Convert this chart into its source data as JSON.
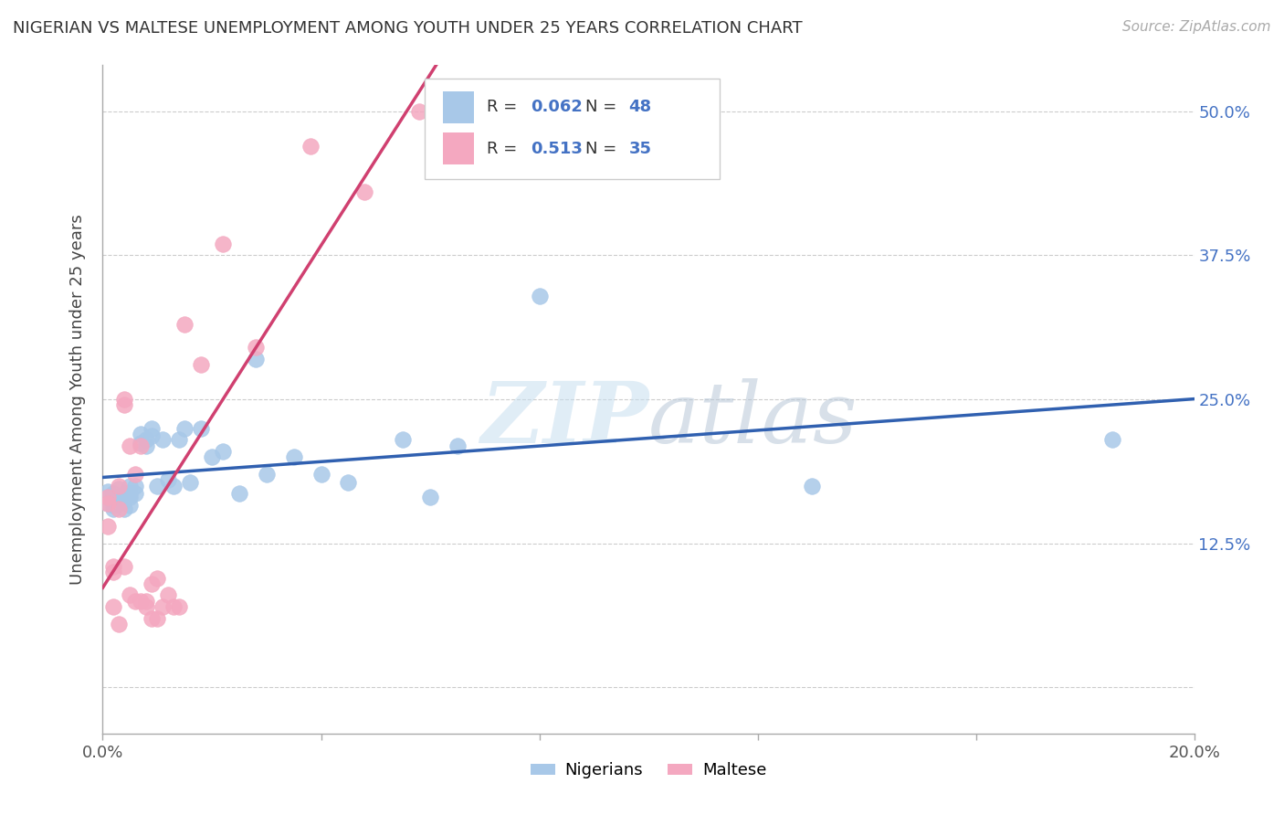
{
  "title": "NIGERIAN VS MALTESE UNEMPLOYMENT AMONG YOUTH UNDER 25 YEARS CORRELATION CHART",
  "source": "Source: ZipAtlas.com",
  "ylabel": "Unemployment Among Youth under 25 years",
  "xlim": [
    0.0,
    0.2
  ],
  "ylim": [
    -0.04,
    0.54
  ],
  "yticks": [
    0.0,
    0.125,
    0.25,
    0.375,
    0.5
  ],
  "ytick_labels": [
    "",
    "12.5%",
    "25.0%",
    "37.5%",
    "50.0%"
  ],
  "xticks": [
    0.0,
    0.04,
    0.08,
    0.12,
    0.16,
    0.2
  ],
  "xtick_labels": [
    "0.0%",
    "",
    "",
    "",
    "",
    "20.0%"
  ],
  "nigerian_R": 0.062,
  "nigerian_N": 48,
  "maltese_R": 0.513,
  "maltese_N": 35,
  "nigerian_color": "#a8c8e8",
  "maltese_color": "#f4a8c0",
  "nigerian_line_color": "#3060b0",
  "maltese_line_color": "#d04070",
  "background_color": "#ffffff",
  "watermark": "ZIPatlas",
  "nigerian_x": [
    0.001,
    0.001,
    0.001,
    0.002,
    0.002,
    0.002,
    0.002,
    0.003,
    0.003,
    0.003,
    0.003,
    0.004,
    0.004,
    0.004,
    0.005,
    0.005,
    0.005,
    0.005,
    0.006,
    0.006,
    0.007,
    0.007,
    0.008,
    0.008,
    0.009,
    0.009,
    0.01,
    0.011,
    0.012,
    0.013,
    0.014,
    0.015,
    0.016,
    0.018,
    0.02,
    0.022,
    0.025,
    0.028,
    0.03,
    0.035,
    0.04,
    0.045,
    0.055,
    0.06,
    0.065,
    0.08,
    0.13,
    0.185
  ],
  "nigerian_y": [
    0.165,
    0.17,
    0.16,
    0.168,
    0.162,
    0.155,
    0.158,
    0.165,
    0.163,
    0.16,
    0.172,
    0.168,
    0.162,
    0.155,
    0.175,
    0.168,
    0.165,
    0.158,
    0.175,
    0.168,
    0.22,
    0.212,
    0.21,
    0.215,
    0.225,
    0.218,
    0.175,
    0.215,
    0.18,
    0.175,
    0.215,
    0.225,
    0.178,
    0.225,
    0.2,
    0.205,
    0.168,
    0.285,
    0.185,
    0.2,
    0.185,
    0.178,
    0.215,
    0.165,
    0.21,
    0.34,
    0.175,
    0.215
  ],
  "maltese_x": [
    0.001,
    0.001,
    0.001,
    0.002,
    0.002,
    0.002,
    0.003,
    0.003,
    0.003,
    0.004,
    0.004,
    0.004,
    0.005,
    0.005,
    0.006,
    0.006,
    0.007,
    0.007,
    0.008,
    0.008,
    0.009,
    0.009,
    0.01,
    0.01,
    0.011,
    0.012,
    0.013,
    0.014,
    0.015,
    0.018,
    0.022,
    0.028,
    0.038,
    0.048,
    0.058
  ],
  "maltese_y": [
    0.165,
    0.16,
    0.14,
    0.105,
    0.1,
    0.07,
    0.175,
    0.055,
    0.155,
    0.105,
    0.245,
    0.25,
    0.21,
    0.08,
    0.185,
    0.075,
    0.21,
    0.075,
    0.075,
    0.07,
    0.09,
    0.06,
    0.06,
    0.095,
    0.07,
    0.08,
    0.07,
    0.07,
    0.315,
    0.28,
    0.385,
    0.295,
    0.47,
    0.43,
    0.5
  ]
}
